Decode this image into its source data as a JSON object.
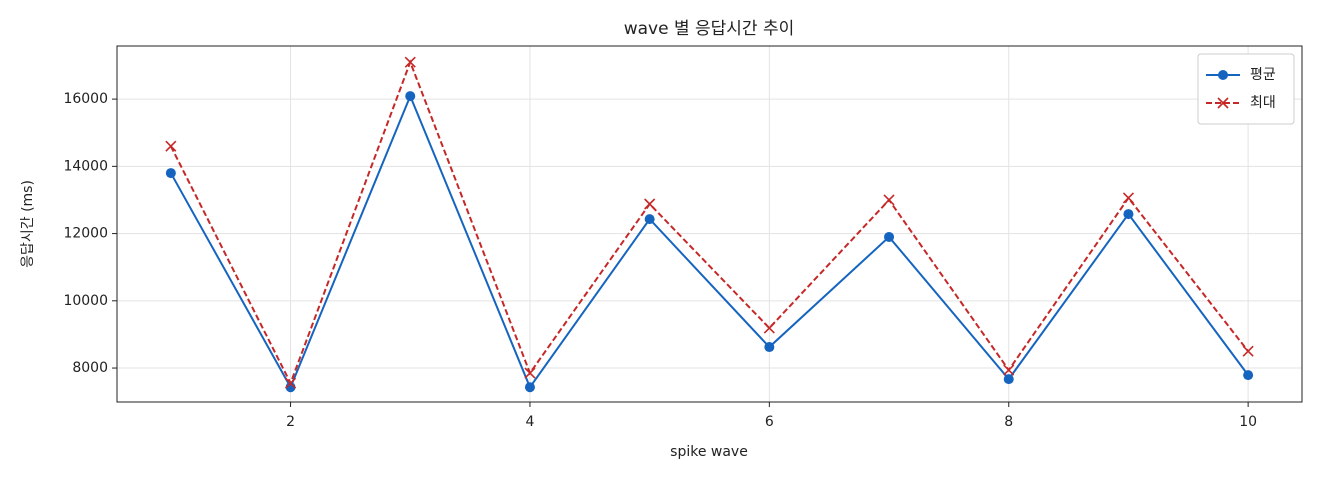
{
  "chart_data": {
    "type": "line",
    "title": "wave 별 응답시간 추이",
    "x_label": "spike wave",
    "y_label": "응답시간 (ms)",
    "x": [
      1,
      2,
      3,
      4,
      5,
      6,
      7,
      8,
      9,
      10
    ],
    "series": [
      {
        "name": "평균",
        "color": "#1565c0",
        "marker": "o",
        "linestyle": "solid",
        "values": [
          13800,
          7430,
          16090,
          7430,
          12430,
          8625,
          11900,
          7670,
          12580,
          7790
        ]
      },
      {
        "name": "최대",
        "color": "#c62828",
        "marker": "x",
        "linestyle": "dashed",
        "values": [
          14600,
          7550,
          17100,
          7850,
          12880,
          9190,
          13000,
          7940,
          13060,
          8500
        ]
      }
    ],
    "xlim": [
      0.55,
      10.45
    ],
    "xticks": [
      2,
      4,
      6,
      8,
      10
    ],
    "ylim": [
      6990,
      17580
    ],
    "yticks": [
      8000,
      10000,
      12000,
      14000,
      16000
    ],
    "grid": true,
    "legend": "upper right"
  }
}
